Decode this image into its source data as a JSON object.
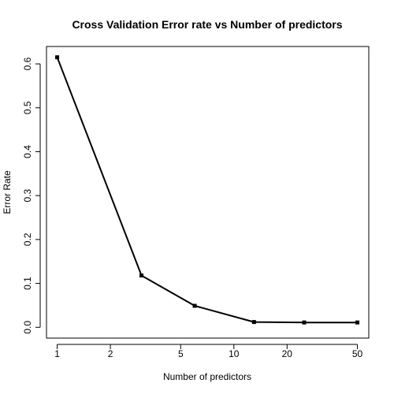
{
  "chart_data": {
    "type": "line",
    "title": "Cross Validation Error rate vs Number of predictors",
    "xlabel": "Number of predictors",
    "ylabel": "Error Rate",
    "x_scale": "log",
    "x": [
      1,
      3,
      6,
      13,
      25,
      50
    ],
    "series": [
      {
        "values": [
          0.615,
          0.118,
          0.049,
          0.012,
          0.011,
          0.011
        ]
      }
    ],
    "xticks": [
      1,
      2,
      5,
      10,
      20,
      50
    ],
    "xtick_labels": [
      "1",
      "2",
      "5",
      "10",
      "20",
      "50"
    ],
    "yticks": [
      0.0,
      0.1,
      0.2,
      0.3,
      0.4,
      0.5,
      0.6
    ],
    "ytick_labels": [
      "0.0",
      "0.1",
      "0.2",
      "0.3",
      "0.4",
      "0.5",
      "0.6"
    ],
    "xlim": [
      0.87,
      58
    ],
    "ylim": [
      -0.0246,
      0.6396
    ],
    "grid": false,
    "legend": "none",
    "line_color": "#000000"
  }
}
